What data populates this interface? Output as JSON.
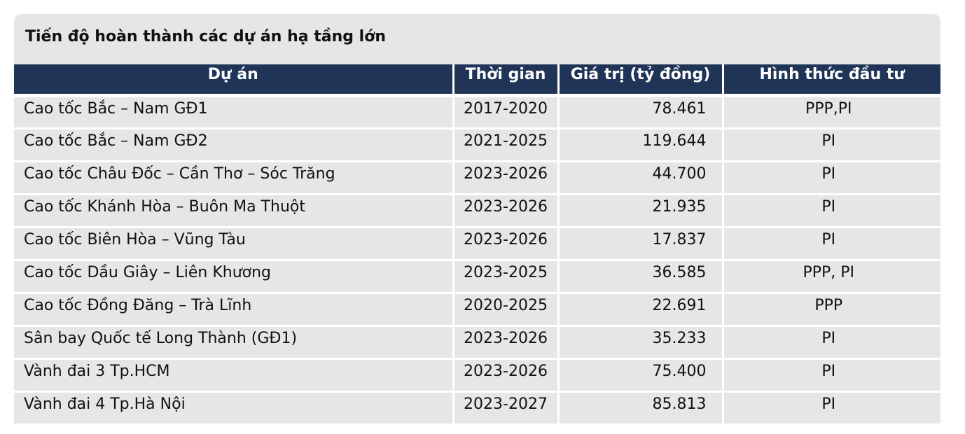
{
  "title": "Tiến độ hoàn thành các dự án hạ tầng lớn",
  "headers": {
    "project": "Dự án",
    "time": "Thời gian",
    "value": "Giá trị (tỷ đồng)",
    "form": "Hình thức đầu tư"
  },
  "rows": [
    {
      "project": "Cao tốc Bắc – Nam GĐ1",
      "time": "2017-2020",
      "value": "78.461",
      "form": "PPP,PI"
    },
    {
      "project": "Cao tốc Bắc – Nam GĐ2",
      "time": "2021-2025",
      "value": "119.644",
      "form": "PI"
    },
    {
      "project": "Cao tốc Châu Đốc – Cần Thơ – Sóc Trăng",
      "time": "2023-2026",
      "value": "44.700",
      "form": "PI"
    },
    {
      "project": "Cao tốc Khánh Hòa – Buôn Ma Thuột",
      "time": "2023-2026",
      "value": "21.935",
      "form": "PI"
    },
    {
      "project": "Cao tốc Biên Hòa – Vũng Tàu",
      "time": "2023-2026",
      "value": "17.837",
      "form": "PI"
    },
    {
      "project": "Cao tốc Dầu Giây – Liên Khương",
      "time": "2023-2025",
      "value": "36.585",
      "form": "PPP, PI"
    },
    {
      "project": "Cao tốc Đồng Đăng – Trà Lĩnh",
      "time": "2020-2025",
      "value": "22.691",
      "form": "PPP"
    },
    {
      "project": "Sân bay Quốc tế Long Thành (GĐ1)",
      "time": "2023-2026",
      "value": "35.233",
      "form": "PI"
    },
    {
      "project": "Vành đai 3 Tp.HCM",
      "time": "2023-2026",
      "value": "75.400",
      "form": "PI"
    },
    {
      "project": "Vành đai 4 Tp.Hà Nội",
      "time": "2023-2027",
      "value": "85.813",
      "form": "PI"
    }
  ]
}
